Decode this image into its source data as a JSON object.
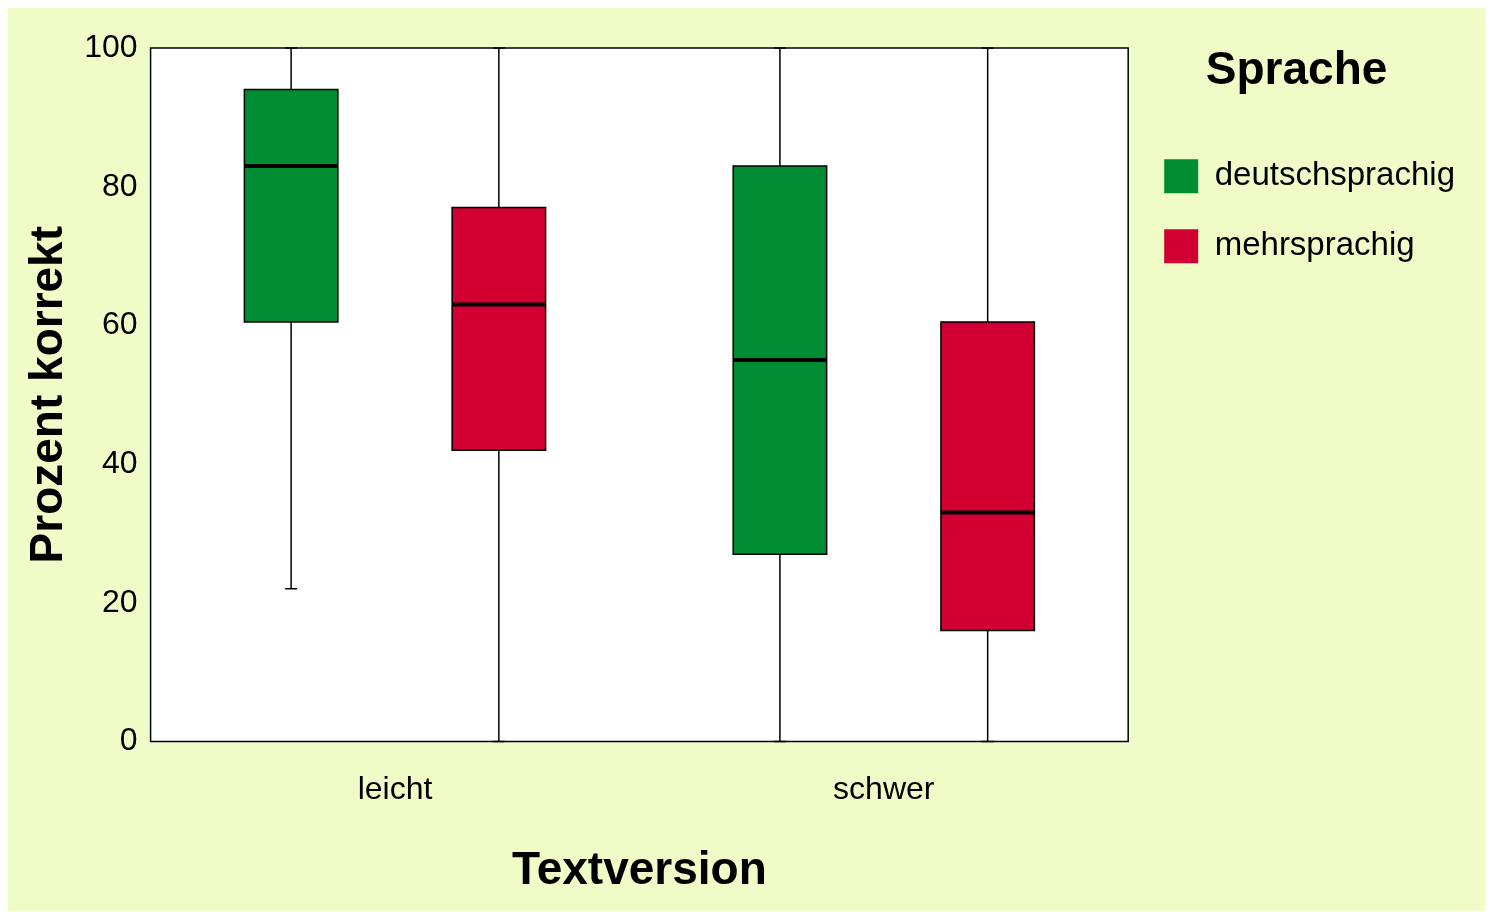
{
  "chart_data": {
    "type": "box",
    "xlabel": "Textversion",
    "ylabel": "Prozent korrekt",
    "legend_title": "Sprache",
    "legend": "top right",
    "categories": [
      "leicht",
      "schwer"
    ],
    "ylim": [
      0,
      100
    ],
    "yticks": [
      0,
      20,
      40,
      60,
      80,
      100
    ],
    "series": [
      {
        "name": "deutschsprachig",
        "color": "#008c32",
        "boxes": [
          {
            "low": 22,
            "q1": 60.5,
            "median": 83,
            "q3": 94,
            "high": 100
          },
          {
            "low": 0,
            "q1": 27,
            "median": 55,
            "q3": 83,
            "high": 100
          }
        ]
      },
      {
        "name": "mehrsprachig",
        "color": "#d20032",
        "boxes": [
          {
            "low": 0,
            "q1": 42,
            "median": 63,
            "q3": 77,
            "high": 100
          },
          {
            "low": 0,
            "q1": 16,
            "median": 33,
            "q3": 60.5,
            "high": 100
          }
        ]
      }
    ]
  }
}
